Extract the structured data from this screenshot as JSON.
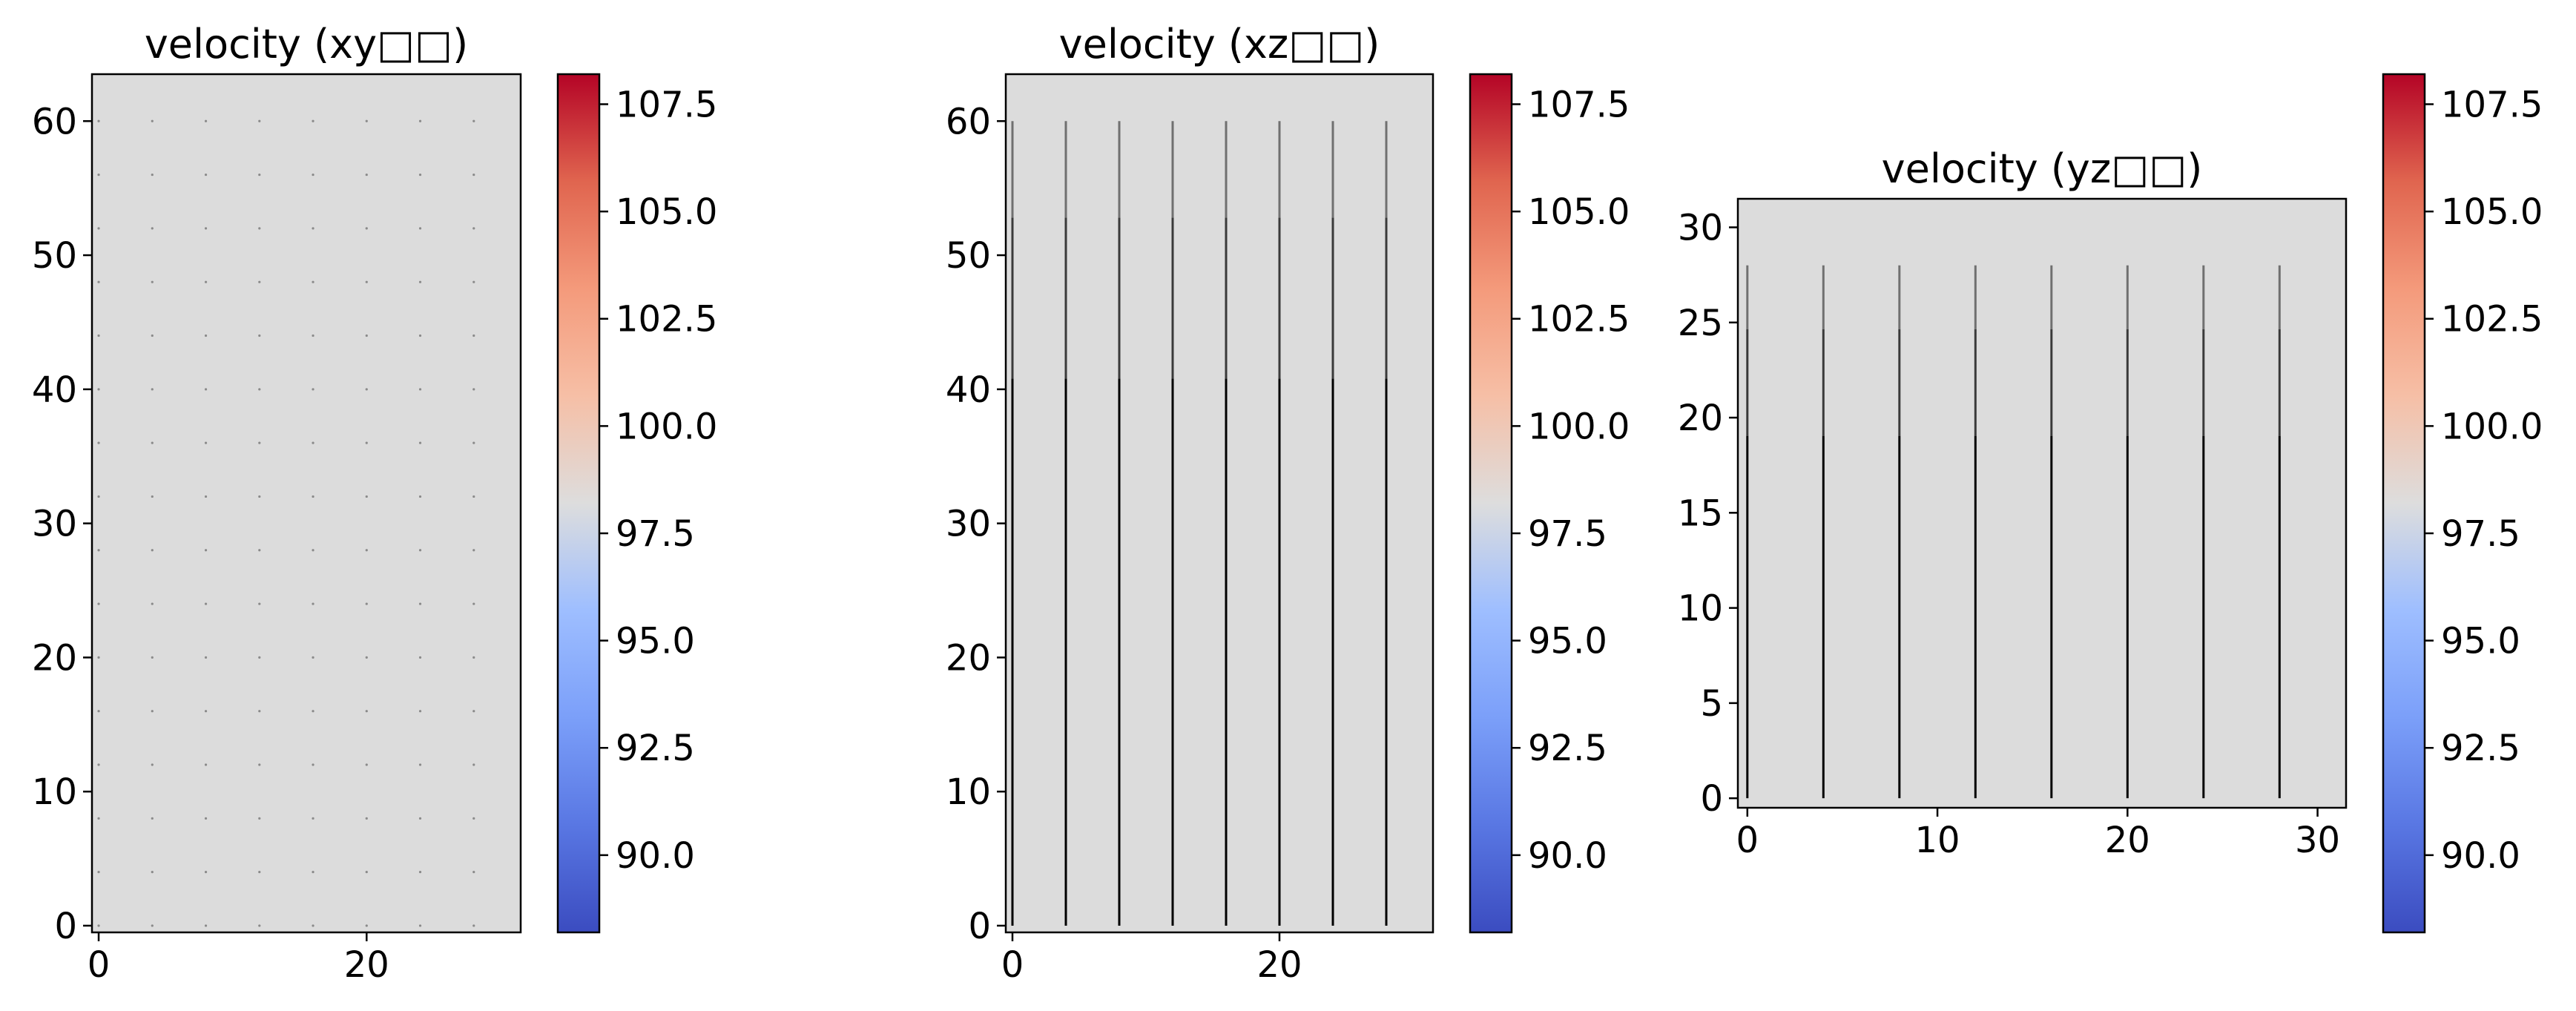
{
  "chart_data": [
    {
      "type": "heatmap",
      "title": "velocity (xy□□)",
      "colormap": "coolwarm",
      "field_value": 99.0,
      "field_color": "#dcdcdc",
      "xlim": [
        -0.5,
        31.5
      ],
      "ylim": [
        -0.5,
        63.5
      ],
      "xticks": [
        0,
        20
      ],
      "yticks": [
        0,
        10,
        20,
        30,
        40,
        50,
        60
      ],
      "quiver": {
        "style": "dots",
        "x": [
          0,
          4,
          8,
          12,
          16,
          20,
          24,
          28
        ],
        "y": [
          0,
          4,
          8,
          12,
          16,
          20,
          24,
          28,
          32,
          36,
          40,
          44,
          48,
          52,
          56,
          60
        ]
      },
      "colorbar": {
        "range": [
          88.2,
          108.2
        ],
        "ticks": [
          "90.0",
          "92.5",
          "95.0",
          "97.5",
          "100.0",
          "102.5",
          "105.0",
          "107.5"
        ]
      }
    },
    {
      "type": "heatmap",
      "title": "velocity (xz□□)",
      "colormap": "coolwarm",
      "field_value": 99.0,
      "field_color": "#dcdcdc",
      "xlim": [
        -0.5,
        31.5
      ],
      "ylim": [
        -0.5,
        63.5
      ],
      "xticks": [
        0,
        20
      ],
      "yticks": [
        0,
        10,
        20,
        30,
        40,
        50,
        60
      ],
      "quiver": {
        "style": "vertical",
        "x": [
          0,
          4,
          8,
          12,
          16,
          20,
          24,
          28
        ],
        "y_from": 0,
        "y_to": 60
      },
      "colorbar": {
        "range": [
          88.2,
          108.2
        ],
        "ticks": [
          "90.0",
          "92.5",
          "95.0",
          "97.5",
          "100.0",
          "102.5",
          "105.0",
          "107.5"
        ]
      }
    },
    {
      "type": "heatmap",
      "title": "velocity (yz□□)",
      "colormap": "coolwarm",
      "field_value": 99.0,
      "field_color": "#dcdcdc",
      "xlim": [
        -0.5,
        31.5
      ],
      "ylim": [
        -0.5,
        31.5
      ],
      "xticks": [
        0,
        10,
        20,
        30
      ],
      "yticks": [
        0,
        5,
        10,
        15,
        20,
        25,
        30
      ],
      "quiver": {
        "style": "vertical",
        "x": [
          0,
          4,
          8,
          12,
          16,
          20,
          24,
          28
        ],
        "y_from": 0,
        "y_to": 28
      },
      "colorbar": {
        "range": [
          88.2,
          108.2
        ],
        "ticks": [
          "90.0",
          "92.5",
          "95.0",
          "97.5",
          "100.0",
          "102.5",
          "105.0",
          "107.5"
        ]
      }
    }
  ]
}
